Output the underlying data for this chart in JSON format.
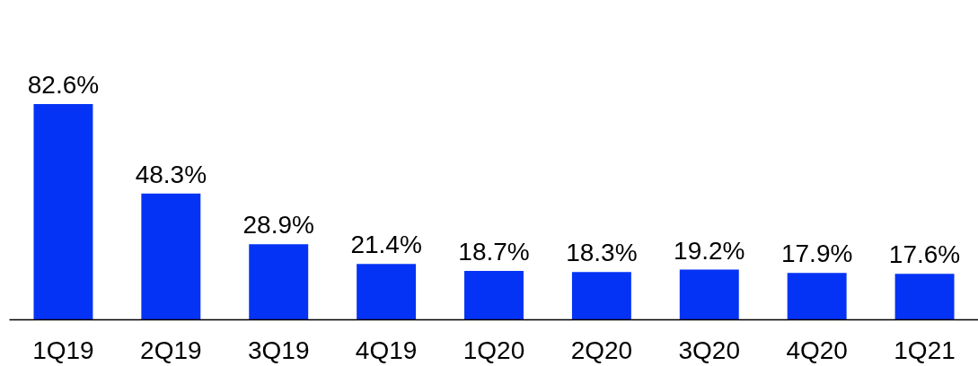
{
  "chart_data": {
    "type": "bar",
    "categories": [
      "1Q19",
      "2Q19",
      "3Q19",
      "4Q19",
      "1Q20",
      "2Q20",
      "3Q20",
      "4Q20",
      "1Q21"
    ],
    "values": [
      82.6,
      48.3,
      28.9,
      21.4,
      18.7,
      18.3,
      19.2,
      17.9,
      17.6
    ],
    "value_labels": [
      "82.6%",
      "48.3%",
      "28.9%",
      "21.4%",
      "18.7%",
      "18.3%",
      "19.2%",
      "17.9%",
      "17.6%"
    ],
    "color": "#0433f5",
    "grid": false
  }
}
